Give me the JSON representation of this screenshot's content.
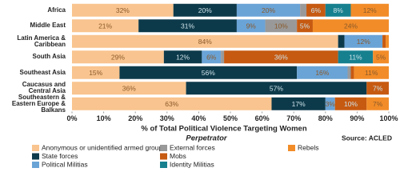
{
  "chart_data": {
    "type": "stacked-bar-horizontal",
    "x_label": "% of Total Political Violence Targeting Women",
    "legend_title": "Perpetrator",
    "source": "Source: ACLED",
    "categories": [
      "Africa",
      "Middle East",
      "Latin America & Caribbean",
      "South Asia",
      "Southeast Asia",
      "Caucasus and Central Asia",
      "Southeastern & Eastern Europe & Balkans"
    ],
    "series": [
      {
        "name": "Anonymous or unidentified armed groups",
        "color": "#f9c48f",
        "values": [
          32,
          21,
          84,
          29,
          15,
          36,
          63
        ],
        "value_labels": [
          "32%",
          "21%",
          "84%",
          "29%",
          "15%",
          "36%",
          "63%"
        ]
      },
      {
        "name": "State forces",
        "color": "#0d3a4a",
        "values": [
          20,
          31,
          2,
          12,
          56,
          57,
          17
        ],
        "value_labels": [
          "20%",
          "31%",
          null,
          "12%",
          "56%",
          "57%",
          "17%"
        ]
      },
      {
        "name": "Political Militias",
        "color": "#6aa3d6",
        "values": [
          20,
          9,
          12,
          6,
          16,
          0,
          3
        ],
        "value_labels": [
          "20%",
          "9%",
          "12%",
          "6%",
          "16%",
          null,
          "3%"
        ]
      },
      {
        "name": "External forces",
        "color": "#999999",
        "values": [
          2,
          10,
          0,
          1,
          1,
          0,
          0
        ],
        "value_labels": [
          null,
          "10%",
          null,
          null,
          null,
          null,
          null
        ]
      },
      {
        "name": "Mobs",
        "color": "#c65a11",
        "values": [
          6,
          5,
          1,
          36,
          1,
          7,
          10
        ],
        "value_labels": [
          "6%",
          "5%",
          null,
          "36%",
          null,
          "7%",
          "10%"
        ]
      },
      {
        "name": "Identity Militias",
        "color": "#17808f",
        "values": [
          8,
          0,
          0,
          11,
          0,
          0,
          0
        ],
        "value_labels": [
          "8%",
          null,
          null,
          "11%",
          null,
          null,
          null
        ]
      },
      {
        "name": "Rebels",
        "color": "#f28c28",
        "values": [
          12,
          24,
          1,
          5,
          11,
          0,
          7
        ],
        "value_labels": [
          "12%",
          "24%",
          null,
          "5%",
          "11%",
          null,
          "7%"
        ]
      }
    ],
    "xlim": [
      0,
      100
    ],
    "xticks": [
      {
        "value": 0,
        "label": "0%"
      },
      {
        "value": 10,
        "label": "10%"
      },
      {
        "value": 20,
        "label": "20%"
      },
      {
        "value": 30,
        "label": "30%"
      },
      {
        "value": 40,
        "label": "40%"
      },
      {
        "value": 50,
        "label": "50%"
      },
      {
        "value": 60,
        "label": "60%"
      },
      {
        "value": 70,
        "label": "70%"
      },
      {
        "value": 80,
        "label": "80%"
      },
      {
        "value": 90,
        "label": "90%"
      },
      {
        "value": 100,
        "label": "100%"
      }
    ],
    "grid": false
  }
}
